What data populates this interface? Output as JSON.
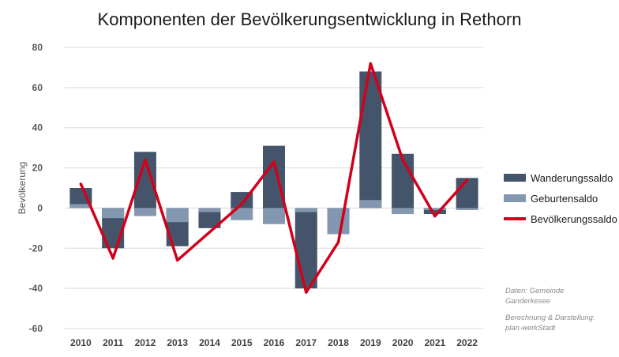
{
  "title": "Komponenten der Bevölkerungsentwicklung  in Rethorn",
  "chart_data": {
    "type": "bar",
    "title": "Komponenten der Bevölkerungsentwicklung  in Rethorn",
    "ylabel": "Bevölkerung",
    "xlabel": "",
    "ylim": [
      -60,
      80
    ],
    "yticks": [
      "80",
      "60",
      "40",
      "20",
      "0",
      "-20",
      "-40",
      "-60"
    ],
    "grid": true,
    "legend_position": "right",
    "categories": [
      "2010",
      "2011",
      "2012",
      "2013",
      "2014",
      "2015",
      "2016",
      "2017",
      "2018",
      "2019",
      "2020",
      "2021",
      "2022"
    ],
    "series": [
      {
        "name": "Wanderungssaldo",
        "type": "bar",
        "color": "#44546a",
        "values": [
          10,
          -20,
          28,
          -19,
          -10,
          8,
          31,
          -40,
          -4,
          68,
          27,
          -3,
          15
        ]
      },
      {
        "name": "Geburtensaldo",
        "type": "bar",
        "color": "#8497b0",
        "values": [
          2,
          -5,
          -4,
          -7,
          -2,
          -6,
          -8,
          -2,
          -13,
          4,
          -3,
          -1,
          -1
        ]
      },
      {
        "name": "Bevölkerungssaldo",
        "type": "line",
        "color": "#d0021b",
        "values": [
          12,
          -25,
          24,
          -26,
          -12,
          2,
          23,
          -42,
          -17,
          72,
          24,
          -4,
          14
        ]
      }
    ]
  },
  "notes": {
    "source": "Daten: Gemeinde Ganderkesee",
    "calc": "Berechnung & Darstellung: plan-werkStadt"
  }
}
